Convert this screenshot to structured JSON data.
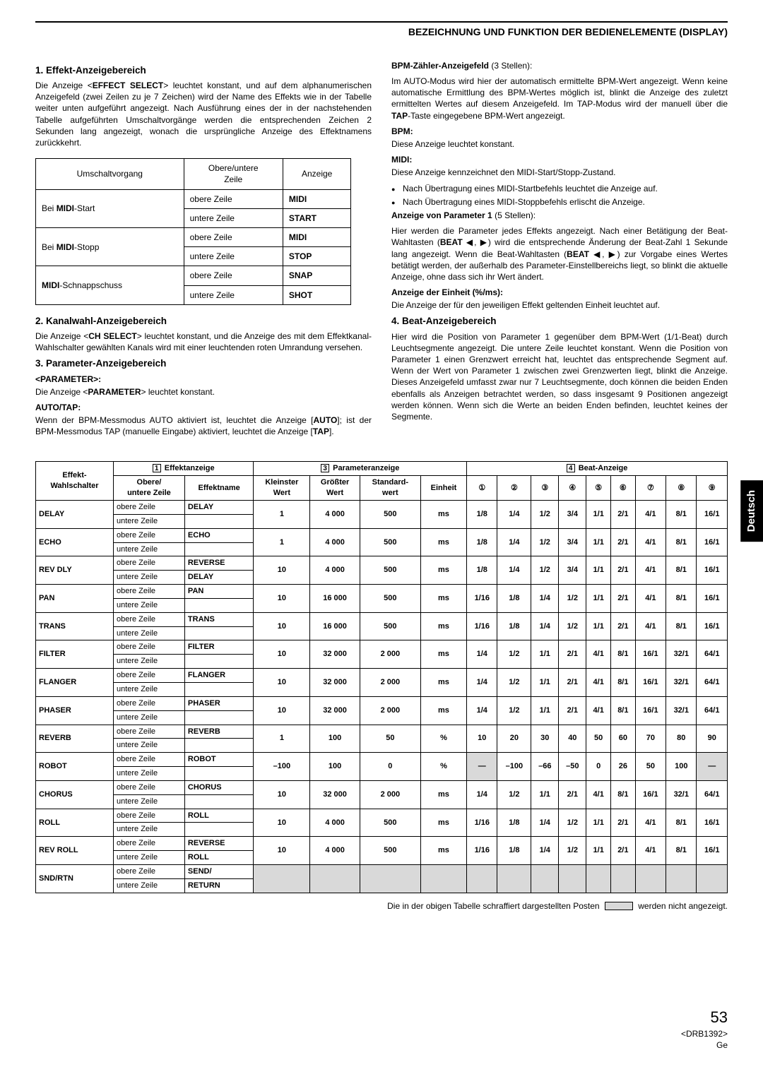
{
  "header": {
    "title": "BEZEICHNUNG UND FUNKTION DER BEDIENELEMENTE (DISPLAY)"
  },
  "lang_tab": "Deutsch",
  "left": {
    "s1_title": "1. Effekt-Anzeigebereich",
    "s1_text": "Die Anzeige <EFFECT SELECT> leuchtet konstant, und auf dem alphanumerischen Anzeigefeld (zwei Zeilen zu je 7 Zeichen) wird der Name des Effekts wie in der Tabelle weiter unten aufgeführt angezeigt. Nach Ausführung eines der in der nachstehenden Tabelle aufgeführten Umschaltvorgänge werden die entsprechenden Zeichen 2 Sekunden lang angezeigt, wonach die ursprüngliche Anzeige des Effektnamens zurückkehrt.",
    "t1": {
      "h1": "Umschaltvorgang",
      "h2": "Obere/untere Zeile",
      "h3": "Anzeige",
      "r1a": "Bei MIDI-Start",
      "obere": "obere Zeile",
      "untere": "untere Zeile",
      "midi": "MIDI",
      "start": "START",
      "r2a": "Bei MIDI-Stopp",
      "stop": "STOP",
      "r3a": "MIDI-Schnappschuss",
      "snap": "SNAP",
      "shot": "SHOT"
    },
    "s2_title": "2. Kanalwahl-Anzeigebereich",
    "s2_text": "Die Anzeige <CH SELECT> leuchtet konstant, und die Anzeige des mit dem Effektkanal-Wahlschalter gewählten Kanals wird mit einer leuchtenden roten Umrandung versehen.",
    "s3_title": "3. Parameter-Anzeigebereich",
    "s3_sub1": "<PARAMETER>:",
    "s3_text1": "Die Anzeige <PARAMETER> leuchtet konstant.",
    "s3_sub2": "AUTO/TAP:",
    "s3_text2": "Wenn der BPM-Messmodus AUTO aktiviert ist, leuchtet die Anzeige [AUTO]; ist der BPM-Messmodus TAP (manuelle Eingabe) aktiviert, leuchtet die Anzeige [TAP]."
  },
  "right": {
    "r1_sub": "BPM-Zähler-Anzeigefeld (3 Stellen):",
    "r1_text": "Im AUTO-Modus wird hier der automatisch ermittelte BPM-Wert angezeigt. Wenn keine automatische Ermittlung des BPM-Wertes möglich ist, blinkt die Anzeige des zuletzt ermittelten Wertes auf diesem Anzeigefeld. Im TAP-Modus wird der manuell über die TAP-Taste eingegebene BPM-Wert angezeigt.",
    "r2_sub": "BPM:",
    "r2_text": "Diese Anzeige leuchtet konstant.",
    "r3_sub": "MIDI:",
    "r3_text": "Diese Anzeige kennzeichnet den MIDI-Start/Stopp-Zustand.",
    "bul1": "Nach Übertragung eines MIDI-Startbefehls leuchtet die Anzeige auf.",
    "bul2": "Nach Übertragung eines MIDI-Stoppbefehls erlischt die Anzeige.",
    "r4_sub": "Anzeige von Parameter 1 (5 Stellen):",
    "r4_text": "Hier werden die Parameter jedes Effekts angezeigt. Nach einer Betätigung der Beat-Wahltasten (BEAT ◀, ▶) wird die entsprechende Änderung der Beat-Zahl 1 Sekunde lang angezeigt. Wenn die Beat-Wahltasten (BEAT ◀, ▶) zur Vorgabe eines Wertes betätigt werden, der außerhalb des Parameter-Einstellbereichs liegt, so blinkt die aktuelle Anzeige, ohne dass sich ihr Wert ändert.",
    "r5_sub": "Anzeige der Einheit (%/ms):",
    "r5_text": "Die Anzeige der für den jeweiligen Effekt geltenden Einheit leuchtet auf.",
    "s4_title": "4. Beat-Anzeigebereich",
    "s4_text": "Hier wird die Position von Parameter 1 gegenüber dem BPM-Wert (1/1-Beat) durch Leuchtsegmente angezeigt. Die untere Zeile leuchtet konstant. Wenn die Position von Parameter 1 einen Grenzwert erreicht hat, leuchtet das entsprechende Segment auf. Wenn der Wert von Parameter 1 zwischen zwei Grenzwerten liegt, blinkt die Anzeige. Dieses Anzeigefeld umfasst zwar nur 7 Leuchtsegmente, doch können die beiden Enden ebenfalls als Anzeigen betrachtet werden, so dass insgesamt 9 Positionen angezeigt werden können. Wenn sich die Werte an beiden Enden befinden, leuchtet keines der Segmente."
  },
  "big_table": {
    "h_effekt": "Effekt-Wahlschalter",
    "h_effektanzeige": "Effektanzeige",
    "h_param": "Parameteranzeige",
    "h_beat": "Beat-Anzeige",
    "h_obere": "Obere/\nuntere Zeile",
    "h_effektname": "Effektname",
    "h_klein": "Kleinster Wert",
    "h_gross": "Größter Wert",
    "h_std": "Standard-wert",
    "h_einheit": "Einheit",
    "nums": [
      "①",
      "②",
      "③",
      "④",
      "⑤",
      "⑥",
      "⑦",
      "⑧",
      "⑨"
    ],
    "obere": "obere Zeile",
    "untere": "untere Zeile",
    "rows": [
      {
        "sw": "DELAY",
        "e1": "DELAY",
        "e2": "",
        "min": "1",
        "max": "4 000",
        "std": "500",
        "u": "ms",
        "b": [
          "1/8",
          "1/4",
          "1/2",
          "3/4",
          "1/1",
          "2/1",
          "4/1",
          "8/1",
          "16/1"
        ]
      },
      {
        "sw": "ECHO",
        "e1": "ECHO",
        "e2": "",
        "min": "1",
        "max": "4 000",
        "std": "500",
        "u": "ms",
        "b": [
          "1/8",
          "1/4",
          "1/2",
          "3/4",
          "1/1",
          "2/1",
          "4/1",
          "8/1",
          "16/1"
        ]
      },
      {
        "sw": "REV DLY",
        "e1": "REVERSE",
        "e2": "DELAY",
        "min": "10",
        "max": "4 000",
        "std": "500",
        "u": "ms",
        "b": [
          "1/8",
          "1/4",
          "1/2",
          "3/4",
          "1/1",
          "2/1",
          "4/1",
          "8/1",
          "16/1"
        ]
      },
      {
        "sw": "PAN",
        "e1": "PAN",
        "e2": "",
        "min": "10",
        "max": "16 000",
        "std": "500",
        "u": "ms",
        "b": [
          "1/16",
          "1/8",
          "1/4",
          "1/2",
          "1/1",
          "2/1",
          "4/1",
          "8/1",
          "16/1"
        ]
      },
      {
        "sw": "TRANS",
        "e1": "TRANS",
        "e2": "",
        "min": "10",
        "max": "16 000",
        "std": "500",
        "u": "ms",
        "b": [
          "1/16",
          "1/8",
          "1/4",
          "1/2",
          "1/1",
          "2/1",
          "4/1",
          "8/1",
          "16/1"
        ]
      },
      {
        "sw": "FILTER",
        "e1": "FILTER",
        "e2": "",
        "min": "10",
        "max": "32 000",
        "std": "2 000",
        "u": "ms",
        "b": [
          "1/4",
          "1/2",
          "1/1",
          "2/1",
          "4/1",
          "8/1",
          "16/1",
          "32/1",
          "64/1"
        ]
      },
      {
        "sw": "FLANGER",
        "e1": "FLANGER",
        "e2": "",
        "min": "10",
        "max": "32 000",
        "std": "2 000",
        "u": "ms",
        "b": [
          "1/4",
          "1/2",
          "1/1",
          "2/1",
          "4/1",
          "8/1",
          "16/1",
          "32/1",
          "64/1"
        ]
      },
      {
        "sw": "PHASER",
        "e1": "PHASER",
        "e2": "",
        "min": "10",
        "max": "32 000",
        "std": "2 000",
        "u": "ms",
        "b": [
          "1/4",
          "1/2",
          "1/1",
          "2/1",
          "4/1",
          "8/1",
          "16/1",
          "32/1",
          "64/1"
        ]
      },
      {
        "sw": "REVERB",
        "e1": "REVERB",
        "e2": "",
        "min": "1",
        "max": "100",
        "std": "50",
        "u": "%",
        "b": [
          "10",
          "20",
          "30",
          "40",
          "50",
          "60",
          "70",
          "80",
          "90"
        ]
      },
      {
        "sw": "ROBOT",
        "e1": "ROBOT",
        "e2": "",
        "min": "–100",
        "max": "100",
        "std": "0",
        "u": "%",
        "b": [
          "—",
          "–100",
          "–66",
          "–50",
          "0",
          "26",
          "50",
          "100",
          "—"
        ],
        "shade1": true,
        "shade9": true
      },
      {
        "sw": "CHORUS",
        "e1": "CHORUS",
        "e2": "",
        "min": "10",
        "max": "32 000",
        "std": "2 000",
        "u": "ms",
        "b": [
          "1/4",
          "1/2",
          "1/1",
          "2/1",
          "4/1",
          "8/1",
          "16/1",
          "32/1",
          "64/1"
        ]
      },
      {
        "sw": "ROLL",
        "e1": "ROLL",
        "e2": "",
        "min": "10",
        "max": "4 000",
        "std": "500",
        "u": "ms",
        "b": [
          "1/16",
          "1/8",
          "1/4",
          "1/2",
          "1/1",
          "2/1",
          "4/1",
          "8/1",
          "16/1"
        ]
      },
      {
        "sw": "REV ROLL",
        "e1": "REVERSE",
        "e2": "ROLL",
        "min": "10",
        "max": "4 000",
        "std": "500",
        "u": "ms",
        "b": [
          "1/16",
          "1/8",
          "1/4",
          "1/2",
          "1/1",
          "2/1",
          "4/1",
          "8/1",
          "16/1"
        ]
      },
      {
        "sw": "SND/RTN",
        "e1": "SEND/",
        "e2": "RETURN",
        "min": "",
        "max": "",
        "std": "",
        "u": "",
        "b": [
          "",
          "",
          "",
          "",
          "",
          "",
          "",
          "",
          ""
        ],
        "allshade": true
      }
    ]
  },
  "footnote": {
    "pre": "Die in der obigen Tabelle schraffiert dargestellten Posten",
    "post": "werden nicht angezeigt."
  },
  "footer": {
    "page": "53",
    "code": "<DRB1392>",
    "lang": "Ge"
  }
}
